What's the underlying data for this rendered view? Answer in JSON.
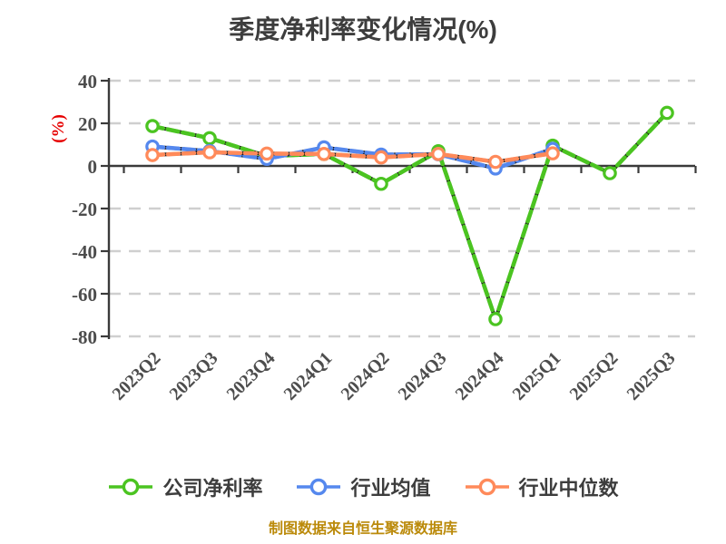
{
  "title": "季度净利率变化情况(%)",
  "footer": "制图数据来自恒生聚源数据库",
  "colors": {
    "title_text": "#3d3d3d",
    "tick_label": "#4d4d4d",
    "axis_line": "#3a3a3a",
    "grid_line": "#cfcfcf",
    "line_underlay": "#141414",
    "y_unit_label": "#e60000",
    "footer_text": "#bb8a0a",
    "marker_fill": "#ffffff",
    "series_green": "#4bc421",
    "series_blue": "#5588ee",
    "series_orange": "#ff8a5a"
  },
  "chart_data": {
    "type": "line",
    "title": "季度净利率变化情况(%)",
    "xlabel": "",
    "ylabel": "(%)",
    "ylim": [
      -80,
      40
    ],
    "yticks": [
      40,
      20,
      0,
      -20,
      -40,
      -60,
      -80
    ],
    "grid": "horizontal dashed",
    "legend_position": "bottom",
    "categories": [
      "2023Q2",
      "2023Q3",
      "2023Q4",
      "2024Q1",
      "2024Q2",
      "2024Q3",
      "2024Q4",
      "2025Q1",
      "2025Q2",
      "2025Q3"
    ],
    "series": [
      {
        "name": "公司净利率",
        "color": "#4bc421",
        "values": [
          18.7,
          13.0,
          4.6,
          5.6,
          -8.4,
          6.9,
          -71.9,
          9.5,
          -3.4,
          24.9
        ]
      },
      {
        "name": "行业均值",
        "color": "#5588ee",
        "values": [
          9.1,
          7.0,
          3.3,
          8.7,
          5.3,
          5.5,
          -1.2,
          8.0
        ]
      },
      {
        "name": "行业中位数",
        "color": "#ff8a5a",
        "values": [
          5.1,
          6.4,
          5.8,
          5.6,
          4.0,
          5.6,
          1.9,
          5.9
        ]
      }
    ]
  }
}
